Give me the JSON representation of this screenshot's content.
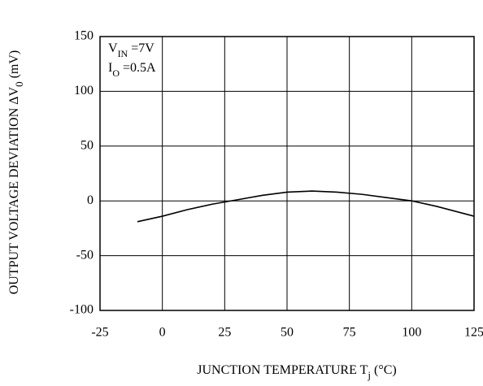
{
  "chart_data": {
    "type": "line",
    "xlabel": [
      "JUNCTION TEMPERATURE T",
      "j",
      "  (°C)"
    ],
    "ylabel": [
      "OUTPUT VOLTAGE DEVIATION  ΔV",
      "0",
      " (mV)"
    ],
    "annotations": [
      [
        "V",
        "IN",
        " =7V"
      ],
      [
        "I",
        "O",
        " =0.5A"
      ]
    ],
    "x": [
      -10,
      0,
      10,
      20,
      30,
      40,
      50,
      60,
      70,
      80,
      90,
      100,
      110,
      125
    ],
    "series": [
      {
        "color": "#000000",
        "values": [
          -19,
          -14,
          -8,
          -3,
          1,
          5,
          8,
          9,
          8,
          6,
          3,
          0,
          -5,
          -14
        ]
      }
    ],
    "xlim": [
      -25,
      125
    ],
    "xticks": [
      -25,
      0,
      25,
      50,
      75,
      100,
      125
    ],
    "ylim": [
      -100,
      150
    ],
    "yticks": [
      -100,
      -50,
      0,
      50,
      100,
      150
    ],
    "grid": true
  }
}
